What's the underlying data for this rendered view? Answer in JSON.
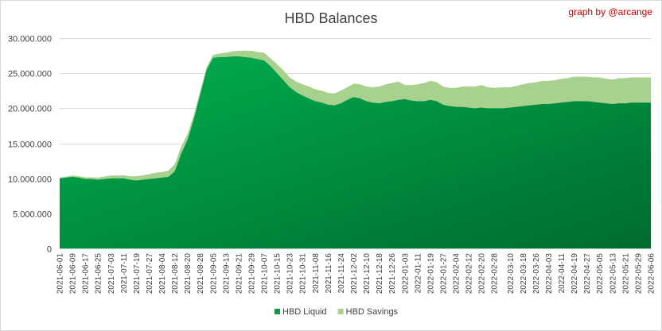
{
  "chart_data": {
    "type": "area",
    "stacked": true,
    "title": "HBD Balances",
    "credit": "graph by @arcange",
    "xlabel": "",
    "ylabel": "",
    "ylim": [
      0,
      30000000
    ],
    "yticks": [
      0,
      5000000,
      10000000,
      15000000,
      20000000,
      25000000,
      30000000
    ],
    "ytick_labels": [
      "0",
      "5.000.000",
      "10.000.000",
      "15.000.000",
      "20.000.000",
      "25.000.000",
      "30.000.000"
    ],
    "grid": true,
    "legend_position": "bottom",
    "x_tick_labels": [
      "2021-06-01",
      "2021-06-09",
      "2021-06-17",
      "2021-06-25",
      "2021-07-03",
      "2021-07-11",
      "2021-07-19",
      "2021-07-27",
      "2021-08-04",
      "2021-08-12",
      "2021-08-20",
      "2021-08-28",
      "2021-09-05",
      "2021-09-13",
      "2021-09-21",
      "2021-09-29",
      "2021-10-07",
      "2021-10-15",
      "2021-10-23",
      "2021-10-31",
      "2021-11-08",
      "2021-11-16",
      "2021-11-24",
      "2021-12-02",
      "2021-12-10",
      "2021-12-18",
      "2021-12-26",
      "2022-01-03",
      "2022-01-11",
      "2022-01-19",
      "2022-01-27",
      "2022-02-04",
      "2022-02-12",
      "2022-02-20",
      "2022-02-28",
      "2022-03-10",
      "2022-03-18",
      "2022-03-26",
      "2022-04-03",
      "2022-04-11",
      "2022-04-19",
      "2022-04-27",
      "2022-05-05",
      "2022-05-13",
      "2022-05-21",
      "2022-05-29",
      "2022-06-06"
    ],
    "x": [
      "2021-06-01",
      "2021-06-05",
      "2021-06-09",
      "2021-06-13",
      "2021-06-17",
      "2021-06-21",
      "2021-06-25",
      "2021-06-29",
      "2021-07-03",
      "2021-07-07",
      "2021-07-11",
      "2021-07-15",
      "2021-07-19",
      "2021-07-23",
      "2021-07-27",
      "2021-07-31",
      "2021-08-04",
      "2021-08-08",
      "2021-08-12",
      "2021-08-16",
      "2021-08-20",
      "2021-08-24",
      "2021-08-28",
      "2021-09-01",
      "2021-09-05",
      "2021-09-09",
      "2021-09-13",
      "2021-09-17",
      "2021-09-21",
      "2021-09-25",
      "2021-09-29",
      "2021-10-03",
      "2021-10-07",
      "2021-10-11",
      "2021-10-15",
      "2021-10-19",
      "2021-10-23",
      "2021-10-27",
      "2021-10-31",
      "2021-11-04",
      "2021-11-08",
      "2021-11-12",
      "2021-11-16",
      "2021-11-20",
      "2021-11-24",
      "2021-11-28",
      "2021-12-02",
      "2021-12-06",
      "2021-12-10",
      "2021-12-14",
      "2021-12-18",
      "2021-12-22",
      "2021-12-26",
      "2021-12-30",
      "2022-01-03",
      "2022-01-07",
      "2022-01-11",
      "2022-01-15",
      "2022-01-19",
      "2022-01-23",
      "2022-01-27",
      "2022-01-31",
      "2022-02-04",
      "2022-02-08",
      "2022-02-12",
      "2022-02-16",
      "2022-02-20",
      "2022-02-24",
      "2022-02-28",
      "2022-03-06",
      "2022-03-10",
      "2022-03-14",
      "2022-03-18",
      "2022-03-22",
      "2022-03-26",
      "2022-03-30",
      "2022-04-03",
      "2022-04-07",
      "2022-04-11",
      "2022-04-15",
      "2022-04-19",
      "2022-04-23",
      "2022-04-27",
      "2022-05-01",
      "2022-05-05",
      "2022-05-09",
      "2022-05-13",
      "2022-05-17",
      "2022-05-21",
      "2022-05-25",
      "2022-05-29",
      "2022-06-02",
      "2022-06-06"
    ],
    "series": [
      {
        "name": "HBD Liquid",
        "color": "#00a040",
        "values": [
          10000000,
          10100000,
          10200000,
          10100000,
          9900000,
          9900000,
          9800000,
          9900000,
          10000000,
          10000000,
          10000000,
          9800000,
          9700000,
          9800000,
          9900000,
          10000000,
          10100000,
          10200000,
          11000000,
          13500000,
          15500000,
          18500000,
          22000000,
          25500000,
          27200000,
          27300000,
          27300000,
          27400000,
          27400000,
          27300000,
          27200000,
          27000000,
          26800000,
          26000000,
          25000000,
          24000000,
          23000000,
          22300000,
          21800000,
          21400000,
          21000000,
          20800000,
          20500000,
          20400000,
          20700000,
          21200000,
          21600000,
          21400000,
          21000000,
          20800000,
          20700000,
          20900000,
          21000000,
          21200000,
          21300000,
          21100000,
          21000000,
          21000000,
          21200000,
          21000000,
          20500000,
          20300000,
          20200000,
          20200000,
          20100000,
          20000000,
          20100000,
          20000000,
          20000000,
          20000000,
          20100000,
          20200000,
          20300000,
          20400000,
          20500000,
          20600000,
          20600000,
          20700000,
          20800000,
          20900000,
          21000000,
          21000000,
          21000000,
          20900000,
          20800000,
          20700000,
          20600000,
          20700000,
          20700000,
          20800000,
          20800000,
          20800000,
          20800000
        ]
      },
      {
        "name": "HBD Savings",
        "color": "#a9d18e",
        "values": [
          100000,
          150000,
          200000,
          200000,
          250000,
          250000,
          300000,
          350000,
          400000,
          400000,
          450000,
          500000,
          600000,
          650000,
          700000,
          800000,
          800000,
          900000,
          1000000,
          1000000,
          800000,
          600000,
          500000,
          400000,
          400000,
          500000,
          600000,
          700000,
          800000,
          900000,
          1000000,
          1000000,
          1100000,
          1100000,
          1300000,
          1400000,
          1400000,
          1500000,
          1600000,
          1700000,
          1700000,
          1700000,
          1700000,
          1700000,
          1800000,
          1800000,
          1900000,
          2000000,
          2100000,
          2200000,
          2400000,
          2500000,
          2600000,
          2600000,
          2000000,
          2200000,
          2400000,
          2600000,
          2700000,
          2700000,
          2600000,
          2600000,
          2700000,
          2900000,
          3000000,
          3100000,
          3200000,
          3000000,
          2900000,
          3000000,
          2900000,
          3000000,
          3100000,
          3200000,
          3200000,
          3300000,
          3300000,
          3300000,
          3400000,
          3400000,
          3500000,
          3500000,
          3500000,
          3500000,
          3600000,
          3500000,
          3500000,
          3600000,
          3600000,
          3600000,
          3600000,
          3600000,
          3600000
        ]
      }
    ]
  }
}
